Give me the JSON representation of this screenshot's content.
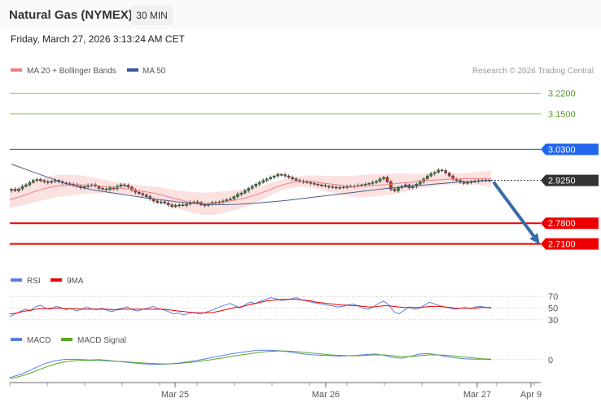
{
  "header": {
    "title": "Natural Gas (NYMEX)",
    "interval": "30 MIN",
    "datetime": "Friday, March 27, 2026 3:13:24 AM CET"
  },
  "legend": {
    "ma20": "MA 20 + Bollinger Bands",
    "ma50": "MA 50",
    "copyright": "Research © 2026 Trading Central",
    "rsi": "RSI",
    "rsi_ma": "9MA",
    "macd": "MACD",
    "macd_signal": "MACD Signal"
  },
  "colors": {
    "candle_up": "#2e8b3d",
    "candle_down": "#c0392b",
    "ma20": "#f08080",
    "ma50": "#4a5f8a",
    "band_fill": "#fcdede",
    "support": "#ee0000",
    "resistance": "#2266ee",
    "target_green": "#8cc152",
    "arrow": "#3a6aa8",
    "rsi": "#5b7fe0",
    "rsi_ma": "#ee0000",
    "macd": "#5b7fe0",
    "macd_signal": "#55aa22"
  },
  "chart_data": [
    {
      "type": "candlestick",
      "title": "Natural Gas (NYMEX)",
      "ylim": [
        2.64,
        3.26
      ],
      "x_ticks": [
        "Mar 25",
        "Mar 26",
        "Mar 27",
        "Apr 9"
      ],
      "levels": [
        {
          "label": "3.2200",
          "value": 3.22,
          "kind": "target"
        },
        {
          "label": "3.1500",
          "value": 3.15,
          "kind": "target"
        },
        {
          "label": "3.0300",
          "value": 3.03,
          "kind": "resistance"
        },
        {
          "label": "2.9250",
          "value": 2.925,
          "kind": "last"
        },
        {
          "label": "2.7800",
          "value": 2.78,
          "kind": "support"
        },
        {
          "label": "2.7100",
          "value": 2.71,
          "kind": "support"
        }
      ],
      "close": [
        2.895,
        2.89,
        2.896,
        2.905,
        2.91,
        2.918,
        2.925,
        2.928,
        2.924,
        2.92,
        2.918,
        2.922,
        2.925,
        2.92,
        2.916,
        2.914,
        2.912,
        2.91,
        2.905,
        2.9,
        2.904,
        2.908,
        2.91,
        2.905,
        2.898,
        2.896,
        2.894,
        2.9,
        2.896,
        2.905,
        2.91,
        2.908,
        2.902,
        2.892,
        2.885,
        2.88,
        2.876,
        2.87,
        2.862,
        2.855,
        2.85,
        2.852,
        2.848,
        2.842,
        2.836,
        2.84,
        2.842,
        2.84,
        2.845,
        2.85,
        2.852,
        2.85,
        2.842,
        2.84,
        2.845,
        2.85,
        2.848,
        2.852,
        2.855,
        2.86,
        2.862,
        2.87,
        2.878,
        2.882,
        2.89,
        2.898,
        2.905,
        2.912,
        2.918,
        2.925,
        2.93,
        2.935,
        2.94,
        2.945,
        2.944,
        2.94,
        2.935,
        2.93,
        2.925,
        2.922,
        2.92,
        2.918,
        2.915,
        2.912,
        2.91,
        2.908,
        2.905,
        2.903,
        2.902,
        2.9,
        2.901,
        2.902,
        2.904,
        2.905,
        2.906,
        2.908,
        2.91,
        2.912,
        2.915,
        2.918,
        2.922,
        2.93,
        2.935,
        2.92,
        2.895,
        2.89,
        2.9,
        2.905,
        2.91,
        2.9,
        2.905,
        2.912,
        2.92,
        2.93,
        2.94,
        2.948,
        2.952,
        2.96,
        2.958,
        2.95,
        2.94,
        2.93,
        2.925,
        2.92,
        2.915,
        2.918,
        2.92,
        2.922,
        2.924,
        2.925,
        2.926,
        2.925
      ],
      "ma20": [
        2.86,
        2.865,
        2.87,
        2.876,
        2.882,
        2.888,
        2.893,
        2.898,
        2.902,
        2.905,
        2.907,
        2.908,
        2.909,
        2.91,
        2.91,
        2.909,
        2.908,
        2.907,
        2.905,
        2.903,
        2.901,
        2.9,
        2.898,
        2.896,
        2.894,
        2.891,
        2.888,
        2.885,
        2.882,
        2.878,
        2.874,
        2.869,
        2.864,
        2.86,
        2.856,
        2.852,
        2.849,
        2.847,
        2.846,
        2.846,
        2.847,
        2.849,
        2.852,
        2.855,
        2.858,
        2.861,
        2.865,
        2.87,
        2.876,
        2.882,
        2.888,
        2.895,
        2.902,
        2.908,
        2.913,
        2.917,
        2.92,
        2.922,
        2.922,
        2.921,
        2.919,
        2.916,
        2.914,
        2.912,
        2.91,
        2.908,
        2.906,
        2.905,
        2.905,
        2.906,
        2.907,
        2.908,
        2.909,
        2.91,
        2.911,
        2.913,
        2.915,
        2.917,
        2.918,
        2.92,
        2.922,
        2.924,
        2.925,
        2.926,
        2.927,
        2.928,
        2.929,
        2.93,
        2.93,
        2.931,
        2.931,
        2.931,
        2.931,
        2.93,
        2.93
      ],
      "ma50": [
        2.98,
        2.968,
        2.956,
        2.944,
        2.932,
        2.92,
        2.91,
        2.902,
        2.895,
        2.889,
        2.884,
        2.879,
        2.874,
        2.869,
        2.864,
        2.86,
        2.856,
        2.852,
        2.849,
        2.846,
        2.844,
        2.843,
        2.843,
        2.844,
        2.846,
        2.848,
        2.851,
        2.854,
        2.857,
        2.861,
        2.865,
        2.869,
        2.873,
        2.877,
        2.881,
        2.885,
        2.889,
        2.893,
        2.897,
        2.9,
        2.903,
        2.906,
        2.909,
        2.912,
        2.915,
        2.918,
        2.92,
        2.922,
        2.924,
        2.926
      ],
      "forecast_arrow": {
        "from": 2.925,
        "to": 2.71
      }
    },
    {
      "type": "line",
      "title": "RSI",
      "ylim": [
        20,
        80
      ],
      "y_ticks": [
        "70",
        "50",
        "30"
      ],
      "series": [
        {
          "name": "RSI",
          "values": [
            35,
            40,
            44,
            48,
            46,
            52,
            55,
            50,
            48,
            53,
            51,
            47,
            50,
            45,
            48,
            52,
            49,
            47,
            50,
            46,
            44,
            48,
            50,
            52,
            47,
            45,
            48,
            50,
            53,
            49,
            47,
            44,
            40,
            42,
            38,
            41,
            43,
            40,
            42,
            45,
            48,
            52,
            55,
            58,
            54,
            50,
            56,
            60,
            58,
            62,
            65,
            68,
            66,
            63,
            64,
            66,
            68,
            64,
            62,
            60,
            58,
            57,
            55,
            54,
            52,
            53,
            55,
            57,
            54,
            50,
            48,
            52,
            58,
            62,
            56,
            44,
            40,
            46,
            52,
            48,
            50,
            55,
            60,
            57,
            54,
            52,
            50,
            48,
            50,
            51,
            49,
            52,
            53,
            51,
            50
          ]
        },
        {
          "name": "9MA",
          "values": [
            40,
            41,
            43,
            45,
            46,
            48,
            49,
            49,
            50,
            50,
            50,
            49,
            49,
            49,
            48,
            48,
            48,
            48,
            48,
            48,
            47,
            47,
            48,
            48,
            48,
            48,
            48,
            48,
            48,
            48,
            48,
            47,
            46,
            45,
            44,
            43,
            42,
            42,
            42,
            42,
            43,
            45,
            47,
            49,
            51,
            52,
            54,
            56,
            58,
            60,
            62,
            63,
            64,
            65,
            65,
            65,
            65,
            64,
            63,
            62,
            60,
            59,
            58,
            57,
            56,
            55,
            55,
            54,
            54,
            53,
            52,
            52,
            53,
            54,
            54,
            53,
            52,
            51,
            51,
            51,
            51,
            52,
            53,
            53,
            53,
            52,
            51,
            50,
            50,
            50,
            50,
            50,
            51,
            51,
            51
          ]
        }
      ]
    },
    {
      "type": "line",
      "title": "MACD",
      "ylim": [
        -0.05,
        0.03
      ],
      "y_ticks": [
        "0"
      ],
      "series": [
        {
          "name": "MACD",
          "values": [
            -0.042,
            -0.036,
            -0.028,
            -0.018,
            -0.009,
            -0.003,
            0.0,
            0.001,
            0.0,
            -0.001,
            0.0,
            -0.002,
            -0.004,
            -0.006,
            -0.008,
            -0.01,
            -0.011,
            -0.011,
            -0.01,
            -0.008,
            -0.005,
            -0.002,
            0.002,
            0.006,
            0.01,
            0.014,
            0.017,
            0.02,
            0.022,
            0.022,
            0.021,
            0.019,
            0.016,
            0.013,
            0.011,
            0.01,
            0.009,
            0.008,
            0.009,
            0.01,
            0.012,
            0.013,
            0.01,
            0.005,
            0.003,
            0.008,
            0.013,
            0.014,
            0.011,
            0.007,
            0.004,
            0.002,
            0.001,
            0.001,
            0.0
          ]
        },
        {
          "name": "MACD Signal",
          "values": [
            -0.045,
            -0.04,
            -0.034,
            -0.026,
            -0.018,
            -0.011,
            -0.006,
            -0.003,
            -0.002,
            -0.002,
            -0.002,
            -0.003,
            -0.004,
            -0.005,
            -0.007,
            -0.008,
            -0.009,
            -0.01,
            -0.01,
            -0.009,
            -0.007,
            -0.005,
            -0.002,
            0.001,
            0.004,
            0.008,
            0.011,
            0.014,
            0.017,
            0.019,
            0.02,
            0.02,
            0.019,
            0.017,
            0.015,
            0.013,
            0.011,
            0.01,
            0.009,
            0.009,
            0.01,
            0.011,
            0.011,
            0.009,
            0.007,
            0.007,
            0.009,
            0.011,
            0.011,
            0.01,
            0.008,
            0.006,
            0.004,
            0.002,
            0.001
          ]
        }
      ]
    }
  ]
}
